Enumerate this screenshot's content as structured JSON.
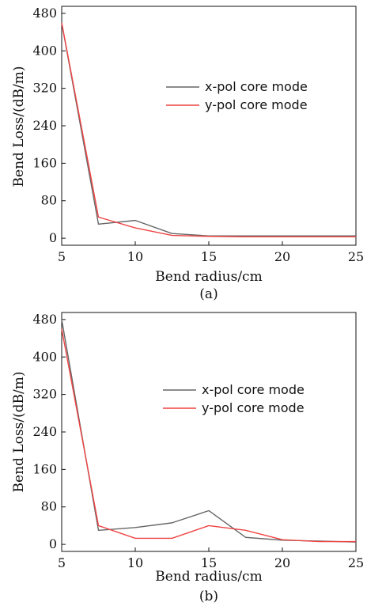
{
  "chart_data": [
    {
      "type": "line",
      "panel_label": "(a)",
      "xlabel": "Bend radius/cm",
      "ylabel": "Bend Loss/(dB/m)",
      "xlim": [
        5,
        25
      ],
      "ylim": [
        -15,
        495
      ],
      "xticks": [
        5,
        10,
        15,
        20,
        25
      ],
      "yticks": [
        0,
        80,
        160,
        240,
        320,
        400,
        480
      ],
      "grid": false,
      "legend_position": "center-right",
      "series": [
        {
          "name": "x-pol core mode",
          "color": "#666666",
          "x": [
            5,
            7.5,
            10,
            12.5,
            15,
            17.5,
            20,
            22.5,
            25
          ],
          "values": [
            460,
            30,
            38,
            10,
            5,
            5,
            5,
            5,
            5
          ]
        },
        {
          "name": "y-pol core mode",
          "color": "#ee4444",
          "x": [
            5,
            7.5,
            10,
            12.5,
            15,
            17.5,
            20,
            22.5,
            25
          ],
          "values": [
            460,
            45,
            22,
            6,
            4,
            3,
            3,
            3,
            3
          ]
        }
      ]
    },
    {
      "type": "line",
      "panel_label": "(b)",
      "xlabel": "Bend radius/cm",
      "ylabel": "Bend Loss/(dB/m)",
      "xlim": [
        5,
        25
      ],
      "ylim": [
        -15,
        495
      ],
      "xticks": [
        5,
        10,
        15,
        20,
        25
      ],
      "yticks": [
        0,
        80,
        160,
        240,
        320,
        400,
        480
      ],
      "grid": false,
      "legend_position": "center-right",
      "series": [
        {
          "name": "x-pol core mode",
          "color": "#666666",
          "x": [
            5,
            7.5,
            10,
            12.5,
            15,
            17.5,
            20,
            22.5,
            25
          ],
          "values": [
            480,
            30,
            36,
            46,
            72,
            15,
            9,
            7,
            5
          ]
        },
        {
          "name": "y-pol core mode",
          "color": "#ee4444",
          "x": [
            5,
            7.5,
            10,
            12.5,
            15,
            17.5,
            20,
            22.5,
            25
          ],
          "values": [
            460,
            40,
            13,
            13,
            40,
            30,
            10,
            6,
            6
          ]
        }
      ]
    }
  ]
}
